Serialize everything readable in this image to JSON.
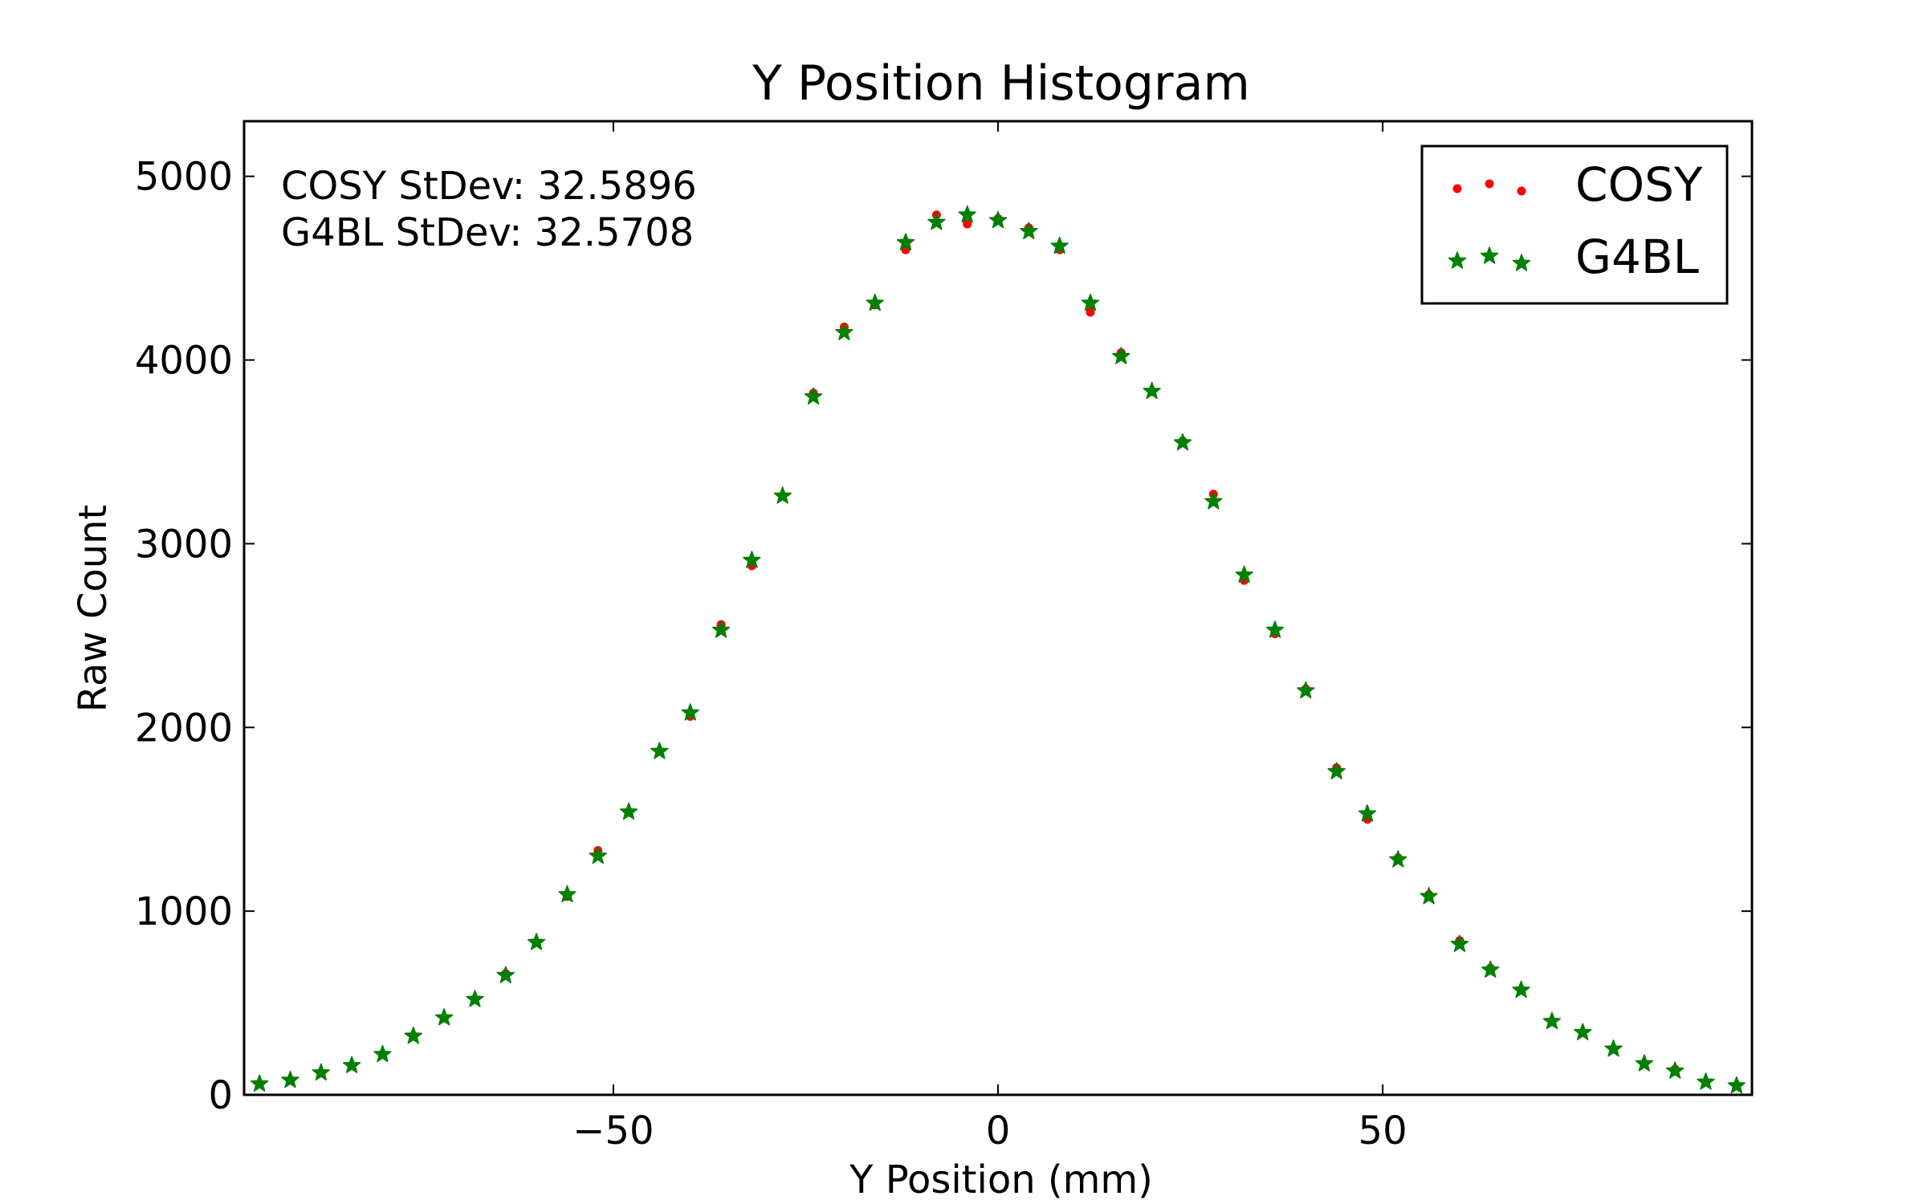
{
  "chart_data": {
    "type": "scatter",
    "title": "Y Position Histogram",
    "xlabel": "Y Position (mm)",
    "ylabel": "Raw Count",
    "xlim": [
      -98,
      98
    ],
    "ylim": [
      0,
      5300
    ],
    "xticks": [
      -50,
      0,
      50
    ],
    "xtick_labels": [
      "−50",
      "0",
      "50"
    ],
    "yticks": [
      0,
      1000,
      2000,
      3000,
      4000,
      5000
    ],
    "ytick_labels": [
      "0",
      "1000",
      "2000",
      "3000",
      "4000",
      "5000"
    ],
    "grid": false,
    "legend_position": "top-right",
    "annotations": [
      "COSY StDev: 32.5896",
      "G4BL StDev: 32.5708"
    ],
    "x": [
      -96,
      -92,
      -88,
      -84,
      -80,
      -76,
      -72,
      -68,
      -64,
      -60,
      -56,
      -52,
      -48,
      -44,
      -40,
      -36,
      -32,
      -28,
      -24,
      -20,
      -16,
      -12,
      -8,
      -4,
      0,
      4,
      8,
      12,
      16,
      20,
      24,
      28,
      32,
      36,
      40,
      44,
      48,
      52,
      56,
      60,
      64,
      68,
      72,
      76,
      80,
      84,
      88,
      92,
      96
    ],
    "series": [
      {
        "name": "COSY",
        "marker": "dot",
        "color": "#ff0000",
        "values": [
          60,
          80,
          120,
          160,
          220,
          320,
          420,
          520,
          660,
          830,
          1080,
          1330,
          1540,
          1870,
          2060,
          2560,
          2880,
          3260,
          3820,
          4180,
          4300,
          4600,
          4790,
          4740,
          4770,
          4720,
          4600,
          4260,
          4040,
          3830,
          3560,
          3270,
          2800,
          2510,
          2210,
          1780,
          1500,
          1290,
          1090,
          840,
          690,
          570,
          400,
          340,
          250,
          170,
          140,
          70,
          50
        ]
      },
      {
        "name": "G4BL",
        "marker": "star",
        "color": "#008000",
        "values": [
          60,
          80,
          120,
          160,
          220,
          320,
          420,
          520,
          650,
          830,
          1090,
          1300,
          1540,
          1870,
          2080,
          2530,
          2910,
          3260,
          3800,
          4150,
          4310,
          4640,
          4750,
          4790,
          4760,
          4700,
          4620,
          4310,
          4020,
          3830,
          3550,
          3230,
          2830,
          2530,
          2200,
          1760,
          1530,
          1280,
          1080,
          820,
          680,
          570,
          400,
          340,
          250,
          170,
          130,
          70,
          50
        ]
      }
    ]
  }
}
